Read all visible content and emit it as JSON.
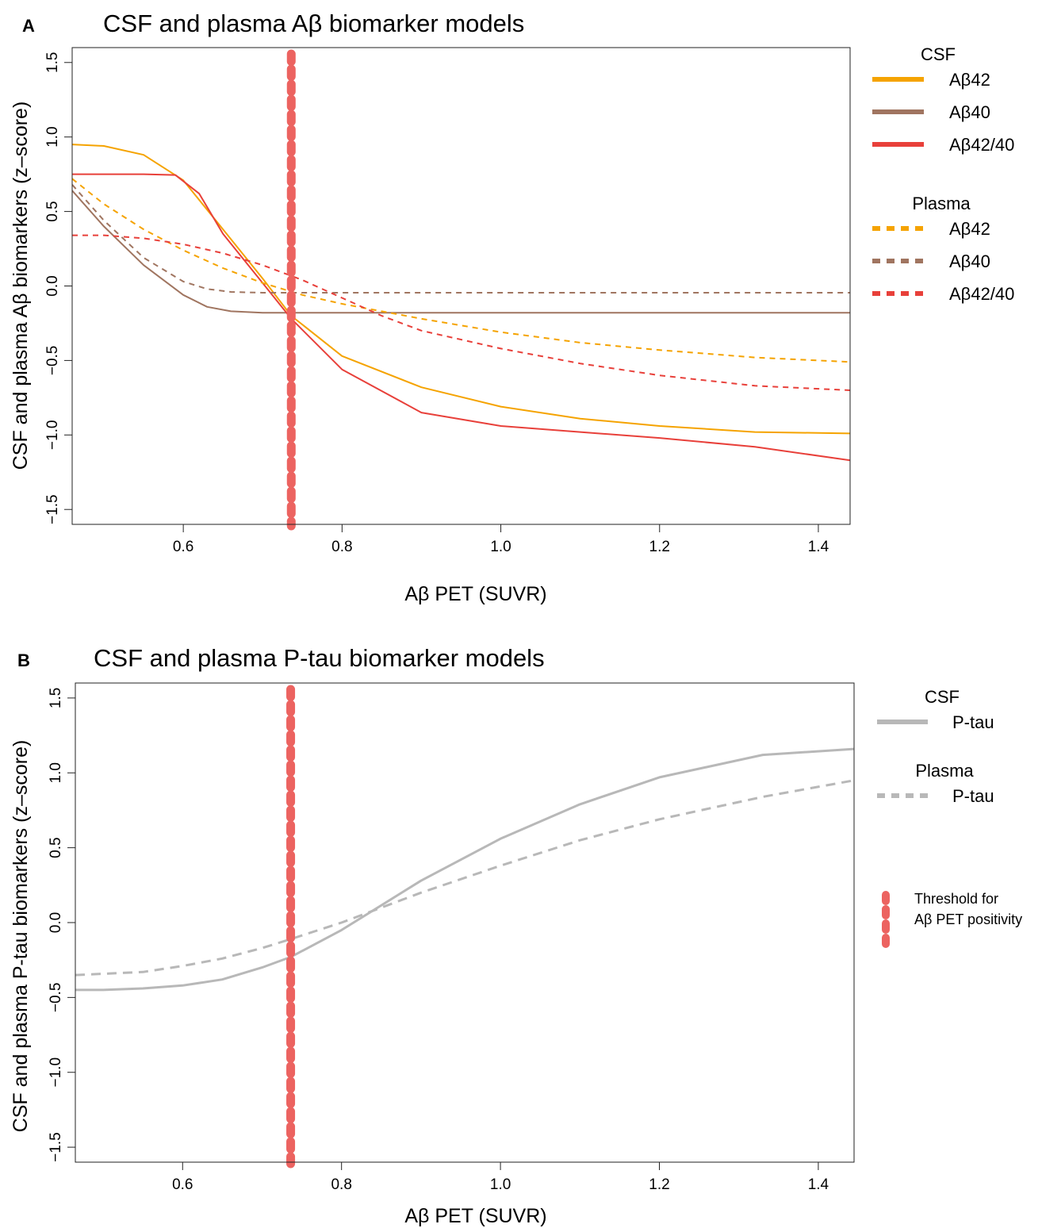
{
  "chart_data": [
    {
      "type": "line",
      "panel_label": "A",
      "title": "CSF and plasma Aβ biomarker models",
      "xlabel": "Aβ PET (SUVR)",
      "ylabel": "CSF and plasma  Aβ biomarkers (z–score)",
      "xlim": [
        0.46,
        1.44
      ],
      "ylim": [
        -1.6,
        1.6
      ],
      "xticks": [
        "0.6",
        "0.8",
        "1.0",
        "1.2",
        "1.4"
      ],
      "yticks": [
        "−1.5",
        "−1.0",
        "−0.5",
        "0.0",
        "0.5",
        "1.0",
        "1.5"
      ],
      "threshold_x": 0.736,
      "legend": {
        "placement": "right",
        "groups": [
          {
            "title": "CSF",
            "entries": [
              "Aβ42",
              "Aβ40",
              "Aβ42/40"
            ]
          },
          {
            "title": "Plasma",
            "entries": [
              "Aβ42",
              "Aβ40",
              "Aβ42/40"
            ]
          }
        ]
      },
      "series": [
        {
          "name": "CSF Aβ42",
          "group": "CSF",
          "style": "solid",
          "color": "#f5a300",
          "points": [
            [
              0.46,
              0.95
            ],
            [
              0.5,
              0.94
            ],
            [
              0.55,
              0.88
            ],
            [
              0.6,
              0.71
            ],
            [
              0.65,
              0.38
            ],
            [
              0.7,
              0.05
            ],
            [
              0.736,
              -0.2
            ],
            [
              0.8,
              -0.47
            ],
            [
              0.9,
              -0.68
            ],
            [
              1.0,
              -0.81
            ],
            [
              1.1,
              -0.89
            ],
            [
              1.2,
              -0.94
            ],
            [
              1.32,
              -0.98
            ],
            [
              1.44,
              -0.99
            ]
          ]
        },
        {
          "name": "CSF Aβ40",
          "group": "CSF",
          "style": "solid",
          "color": "#a07560",
          "points": [
            [
              0.46,
              0.64
            ],
            [
              0.5,
              0.4
            ],
            [
              0.55,
              0.14
            ],
            [
              0.6,
              -0.06
            ],
            [
              0.63,
              -0.14
            ],
            [
              0.66,
              -0.17
            ],
            [
              0.7,
              -0.18
            ],
            [
              0.8,
              -0.18
            ],
            [
              1.0,
              -0.18
            ],
            [
              1.2,
              -0.18
            ],
            [
              1.44,
              -0.18
            ]
          ]
        },
        {
          "name": "CSF Aβ42/40",
          "group": "CSF",
          "style": "solid",
          "color": "#e8403a",
          "points": [
            [
              0.46,
              0.75
            ],
            [
              0.55,
              0.75
            ],
            [
              0.59,
              0.745
            ],
            [
              0.62,
              0.62
            ],
            [
              0.65,
              0.35
            ],
            [
              0.7,
              0.02
            ],
            [
              0.736,
              -0.22
            ],
            [
              0.8,
              -0.56
            ],
            [
              0.9,
              -0.85
            ],
            [
              1.0,
              -0.94
            ],
            [
              1.1,
              -0.98
            ],
            [
              1.2,
              -1.02
            ],
            [
              1.32,
              -1.08
            ],
            [
              1.44,
              -1.17
            ]
          ]
        },
        {
          "name": "Plasma Aβ42",
          "group": "Plasma",
          "style": "dashed",
          "color": "#f5a300",
          "points": [
            [
              0.46,
              0.72
            ],
            [
              0.5,
              0.55
            ],
            [
              0.55,
              0.38
            ],
            [
              0.6,
              0.24
            ],
            [
              0.65,
              0.12
            ],
            [
              0.7,
              0.02
            ],
            [
              0.75,
              -0.06
            ],
            [
              0.8,
              -0.12
            ],
            [
              0.9,
              -0.22
            ],
            [
              1.0,
              -0.31
            ],
            [
              1.1,
              -0.38
            ],
            [
              1.2,
              -0.43
            ],
            [
              1.32,
              -0.48
            ],
            [
              1.44,
              -0.51
            ]
          ]
        },
        {
          "name": "Plasma Aβ40",
          "group": "Plasma",
          "style": "dashed",
          "color": "#a07560",
          "points": [
            [
              0.46,
              0.68
            ],
            [
              0.5,
              0.44
            ],
            [
              0.55,
              0.19
            ],
            [
              0.6,
              0.03
            ],
            [
              0.63,
              -0.02
            ],
            [
              0.66,
              -0.04
            ],
            [
              0.7,
              -0.045
            ],
            [
              0.8,
              -0.045
            ],
            [
              1.0,
              -0.045
            ],
            [
              1.2,
              -0.045
            ],
            [
              1.44,
              -0.045
            ]
          ]
        },
        {
          "name": "Plasma Aβ42/40",
          "group": "Plasma",
          "style": "dashed",
          "color": "#e8403a",
          "points": [
            [
              0.46,
              0.34
            ],
            [
              0.5,
              0.34
            ],
            [
              0.55,
              0.32
            ],
            [
              0.6,
              0.28
            ],
            [
              0.65,
              0.22
            ],
            [
              0.7,
              0.14
            ],
            [
              0.75,
              0.04
            ],
            [
              0.8,
              -0.08
            ],
            [
              0.85,
              -0.2
            ],
            [
              0.9,
              -0.3
            ],
            [
              1.0,
              -0.42
            ],
            [
              1.1,
              -0.52
            ],
            [
              1.2,
              -0.6
            ],
            [
              1.32,
              -0.67
            ],
            [
              1.44,
              -0.7
            ]
          ]
        }
      ]
    },
    {
      "type": "line",
      "panel_label": "B",
      "title": "CSF and plasma P-tau biomarker models",
      "xlabel": "Aβ PET (SUVR)",
      "ylabel": "CSF and plasma P-tau biomarkers (z–score)",
      "xlim": [
        0.465,
        1.445
      ],
      "ylim": [
        -1.6,
        1.6
      ],
      "xticks": [
        "0.6",
        "0.8",
        "1.0",
        "1.2",
        "1.4"
      ],
      "yticks": [
        "−1.5",
        "−1.0",
        "−0.5",
        "0.0",
        "0.5",
        "1.0",
        "1.5"
      ],
      "threshold_x": 0.736,
      "legend": {
        "placement": "right",
        "groups": [
          {
            "title": "CSF",
            "entries": [
              "P-tau"
            ]
          },
          {
            "title": "Plasma",
            "entries": [
              "P-tau"
            ]
          }
        ],
        "threshold_label": [
          "Threshold for",
          "Aβ PET positivity"
        ]
      },
      "series": [
        {
          "name": "CSF P-tau",
          "group": "CSF",
          "style": "solid",
          "color": "#b8b8b8",
          "points": [
            [
              0.465,
              -0.45
            ],
            [
              0.5,
              -0.45
            ],
            [
              0.55,
              -0.44
            ],
            [
              0.6,
              -0.42
            ],
            [
              0.65,
              -0.38
            ],
            [
              0.7,
              -0.3
            ],
            [
              0.736,
              -0.23
            ],
            [
              0.8,
              -0.05
            ],
            [
              0.9,
              0.28
            ],
            [
              1.0,
              0.56
            ],
            [
              1.1,
              0.79
            ],
            [
              1.2,
              0.97
            ],
            [
              1.33,
              1.12
            ],
            [
              1.445,
              1.16
            ]
          ]
        },
        {
          "name": "Plasma P-tau",
          "group": "Plasma",
          "style": "dashed",
          "color": "#b8b8b8",
          "points": [
            [
              0.465,
              -0.35
            ],
            [
              0.55,
              -0.33
            ],
            [
              0.6,
              -0.29
            ],
            [
              0.65,
              -0.24
            ],
            [
              0.7,
              -0.17
            ],
            [
              0.736,
              -0.11
            ],
            [
              0.8,
              0.0
            ],
            [
              0.9,
              0.2
            ],
            [
              1.0,
              0.38
            ],
            [
              1.1,
              0.55
            ],
            [
              1.2,
              0.69
            ],
            [
              1.33,
              0.84
            ],
            [
              1.445,
              0.95
            ]
          ]
        }
      ]
    }
  ]
}
